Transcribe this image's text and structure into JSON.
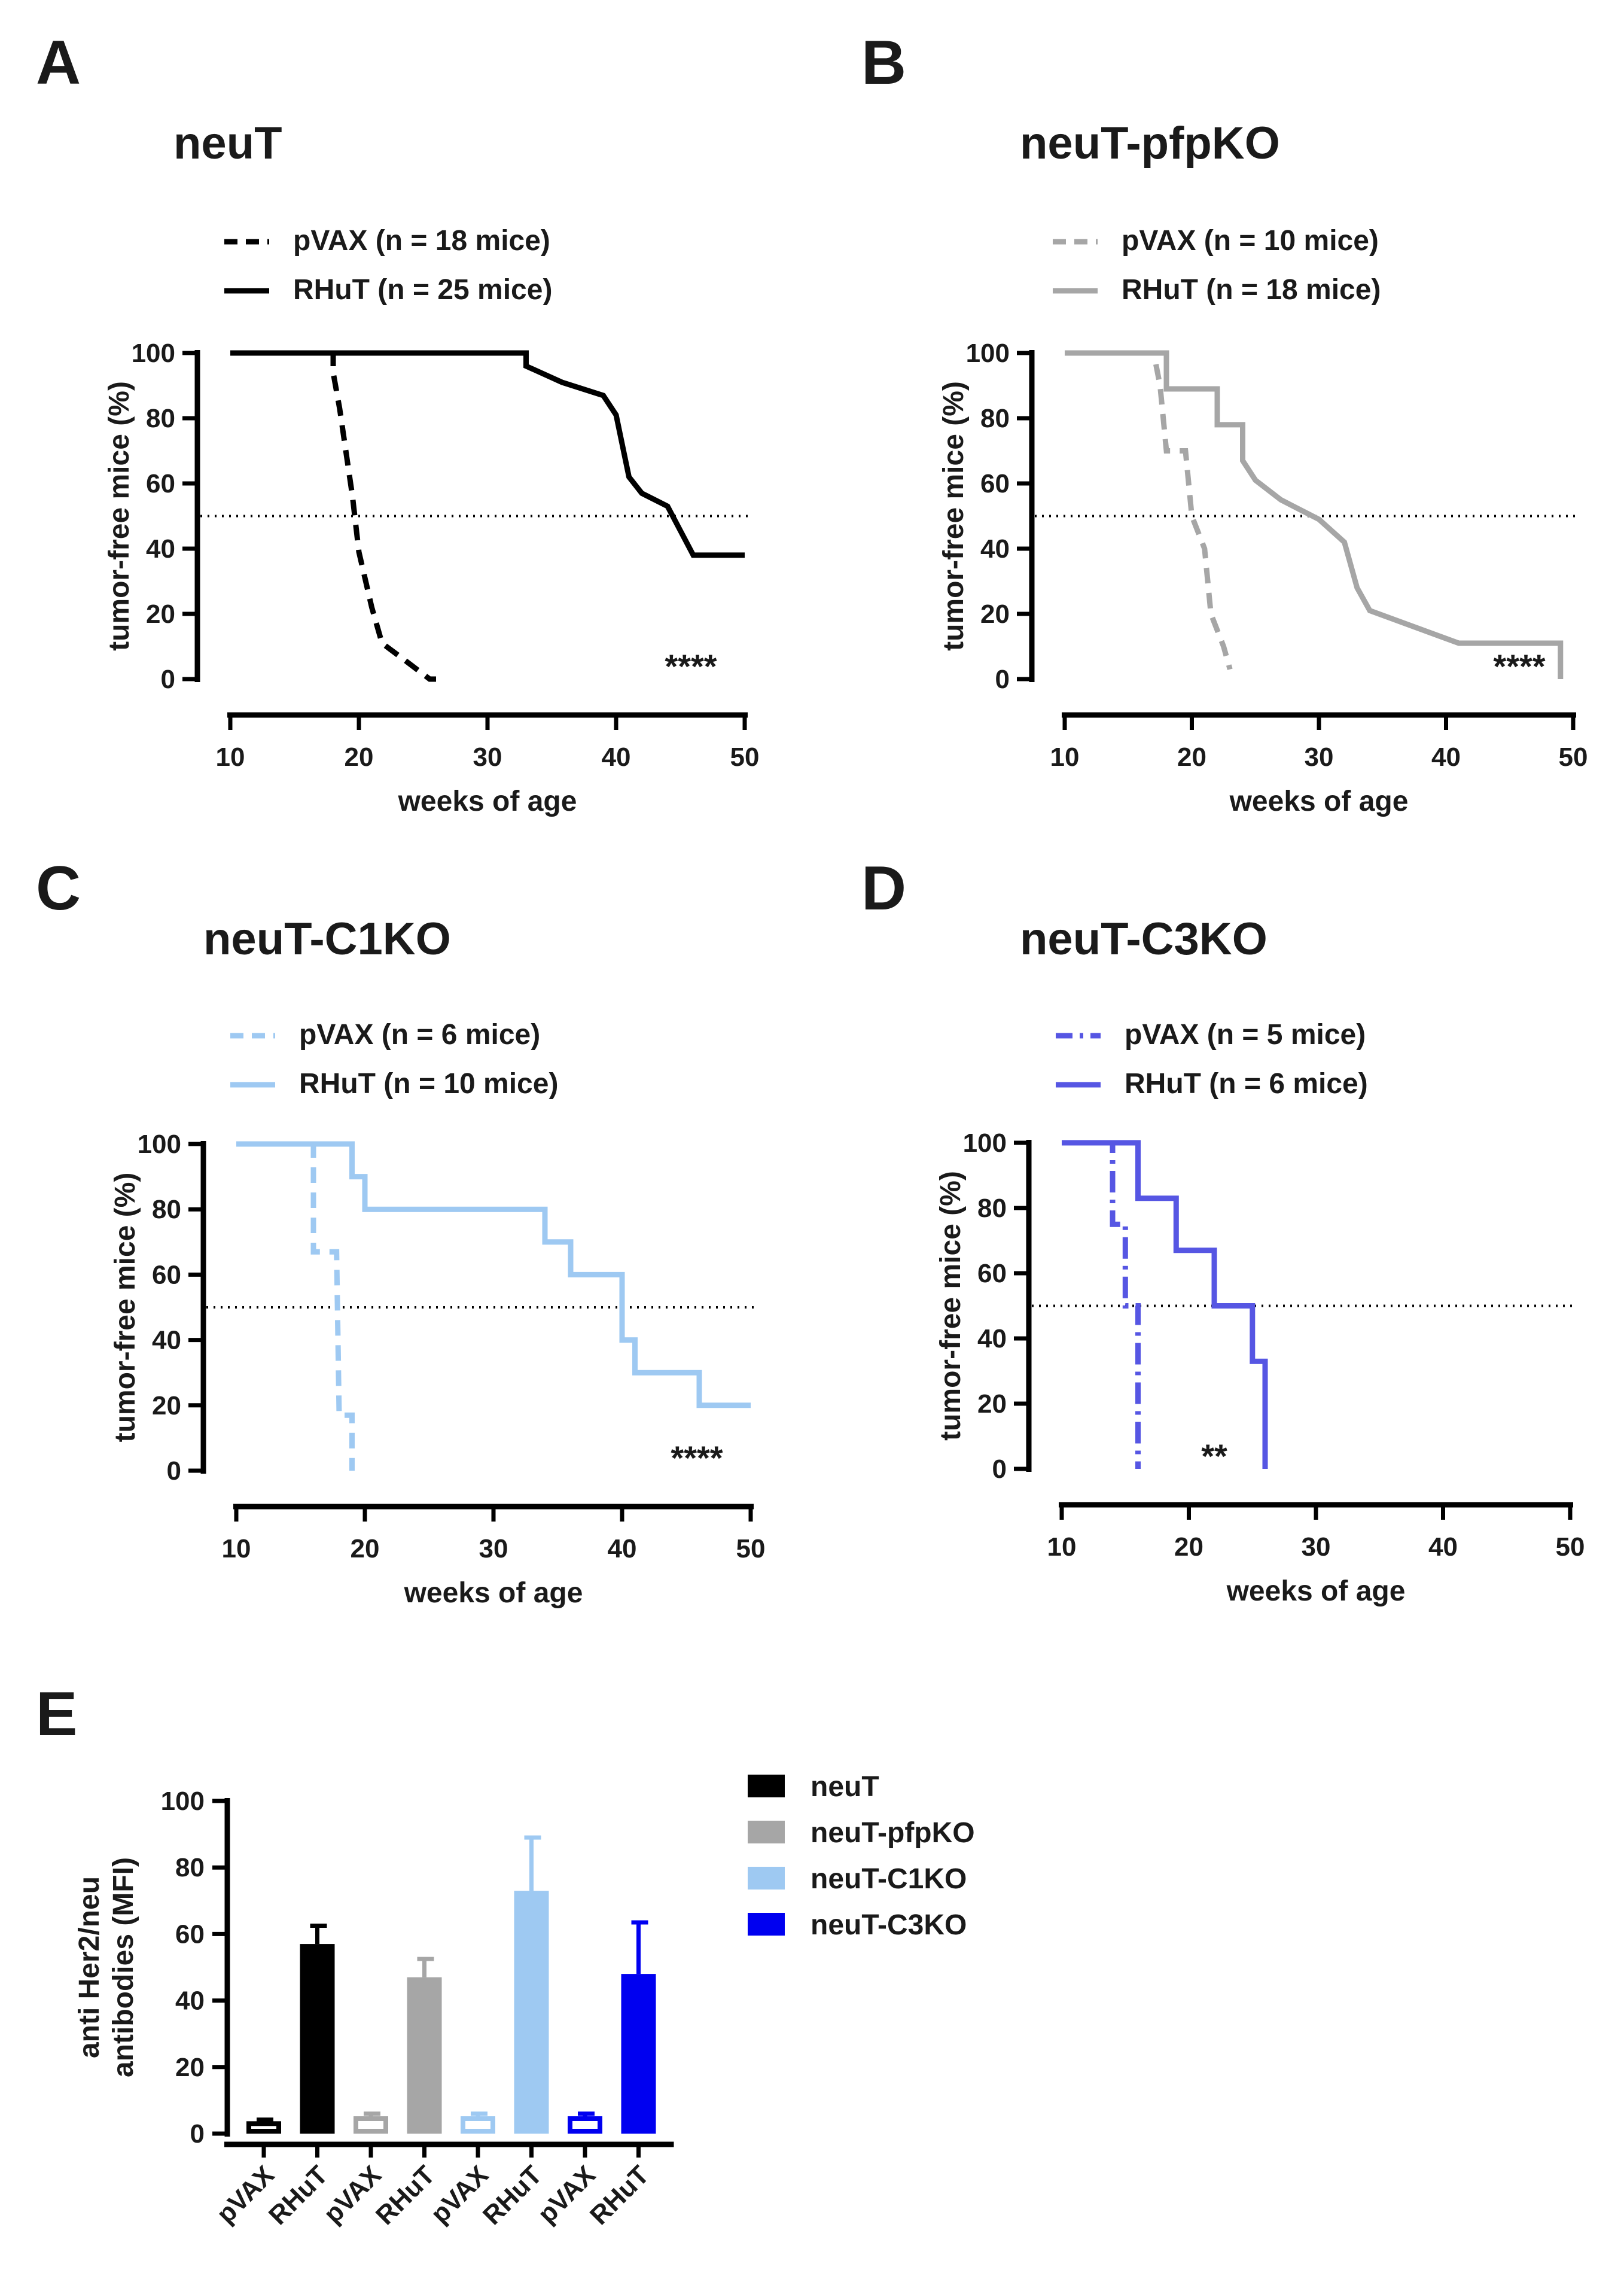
{
  "chart_data": [
    {
      "id": "A",
      "type": "line",
      "panel_label": "A",
      "title": "neuT",
      "xlabel": "weeks of age",
      "ylabel": "tumor-free mice (%)",
      "xlim": [
        10,
        50
      ],
      "ylim": [
        0,
        100
      ],
      "xticks": [
        10,
        20,
        30,
        40,
        50
      ],
      "yticks": [
        0,
        20,
        40,
        60,
        80,
        100
      ],
      "reference_line_y": 50,
      "significance": "****",
      "series": [
        {
          "name": "pVAX (n = 18 mice)",
          "style": "dashed",
          "color": "#000000",
          "points": [
            [
              10,
              100
            ],
            [
              18,
              100
            ],
            [
              18,
              94
            ],
            [
              18.5,
              83
            ],
            [
              19.5,
              56
            ],
            [
              20,
              39
            ],
            [
              21,
              22
            ],
            [
              21.8,
              11
            ],
            [
              23.5,
              6
            ],
            [
              25.5,
              0
            ],
            [
              26,
              0
            ]
          ]
        },
        {
          "name": "RHuT (n = 25 mice)",
          "style": "solid",
          "color": "#000000",
          "points": [
            [
              10,
              100
            ],
            [
              33,
              100
            ],
            [
              33,
              96
            ],
            [
              35.8,
              91
            ],
            [
              39,
              87
            ],
            [
              40,
              81
            ],
            [
              41,
              62
            ],
            [
              42,
              57
            ],
            [
              44,
              53
            ],
            [
              46,
              38
            ],
            [
              50,
              38
            ]
          ]
        }
      ]
    },
    {
      "id": "B",
      "type": "line",
      "panel_label": "B",
      "title": "neuT-pfpKO",
      "xlabel": "weeks of age",
      "ylabel": "tumor-free mice (%)",
      "xlim": [
        10,
        50
      ],
      "ylim": [
        0,
        100
      ],
      "xticks": [
        10,
        20,
        30,
        40,
        50
      ],
      "yticks": [
        0,
        20,
        40,
        60,
        80,
        100
      ],
      "reference_line_y": 50,
      "significance": "****",
      "series": [
        {
          "name": "pVAX (n = 10 mice)",
          "style": "dashed",
          "color": "#a6a6a6",
          "points": [
            [
              10,
              100
            ],
            [
              17,
              100
            ],
            [
              17.5,
              90
            ],
            [
              18,
              70
            ],
            [
              19.5,
              70
            ],
            [
              20,
              50
            ],
            [
              21,
              40
            ],
            [
              21.5,
              20
            ],
            [
              22.5,
              10
            ],
            [
              23,
              3
            ],
            [
              23,
              3
            ]
          ]
        },
        {
          "name": "RHuT (n = 18 mice)",
          "style": "solid",
          "color": "#a6a6a6",
          "points": [
            [
              10,
              100
            ],
            [
              18,
              100
            ],
            [
              18,
              89
            ],
            [
              22,
              89
            ],
            [
              22,
              78
            ],
            [
              24,
              78
            ],
            [
              24,
              67
            ],
            [
              25,
              61
            ],
            [
              27,
              55
            ],
            [
              30,
              49
            ],
            [
              32,
              42
            ],
            [
              33,
              28
            ],
            [
              34,
              21
            ],
            [
              41,
              11
            ],
            [
              49,
              11
            ],
            [
              49,
              0
            ]
          ]
        }
      ]
    },
    {
      "id": "C",
      "type": "line",
      "panel_label": "C",
      "title": "neuT-C1KO",
      "xlabel": "weeks of age",
      "ylabel": "tumor-free mice (%)",
      "xlim": [
        10,
        50
      ],
      "ylim": [
        0,
        100
      ],
      "xticks": [
        10,
        20,
        30,
        40,
        50
      ],
      "yticks": [
        0,
        20,
        40,
        60,
        80,
        100
      ],
      "reference_line_y": 50,
      "significance": "****",
      "series": [
        {
          "name": "pVAX (n = 6 mice)",
          "style": "dashed",
          "color": "#9ec9f2",
          "points": [
            [
              10,
              100
            ],
            [
              16,
              100
            ],
            [
              16,
              67
            ],
            [
              17.8,
              67
            ],
            [
              18,
              17
            ],
            [
              19,
              17
            ],
            [
              19,
              0
            ]
          ]
        },
        {
          "name": "RHuT (n = 10 mice)",
          "style": "solid",
          "color": "#9ec9f2",
          "points": [
            [
              10,
              100
            ],
            [
              19,
              100
            ],
            [
              19,
              90
            ],
            [
              20,
              90
            ],
            [
              20,
              80
            ],
            [
              34,
              80
            ],
            [
              34,
              70
            ],
            [
              36,
              70
            ],
            [
              36,
              60
            ],
            [
              40,
              60
            ],
            [
              40,
              40
            ],
            [
              41,
              40
            ],
            [
              41,
              30
            ],
            [
              46,
              30
            ],
            [
              46,
              20
            ],
            [
              50,
              20
            ]
          ]
        }
      ]
    },
    {
      "id": "D",
      "type": "line",
      "panel_label": "D",
      "title": "neuT-C3KO",
      "xlabel": "weeks of age",
      "ylabel": "tumor-free mice (%)",
      "xlim": [
        10,
        50
      ],
      "ylim": [
        0,
        100
      ],
      "xticks": [
        10,
        20,
        30,
        40,
        50
      ],
      "yticks": [
        0,
        20,
        40,
        60,
        80,
        100
      ],
      "reference_line_y": 50,
      "significance": "**",
      "series": [
        {
          "name": "pVAX (n = 5 mice)",
          "style": "dashdot",
          "color": "#5656e3",
          "points": [
            [
              10,
              100
            ],
            [
              14,
              100
            ],
            [
              14,
              75
            ],
            [
              15,
              75
            ],
            [
              15,
              50
            ],
            [
              16,
              50
            ],
            [
              16,
              0
            ]
          ]
        },
        {
          "name": "RHuT (n = 6 mice)",
          "style": "solid",
          "color": "#5656e3",
          "points": [
            [
              10,
              100
            ],
            [
              16,
              100
            ],
            [
              16,
              83
            ],
            [
              19,
              83
            ],
            [
              19,
              67
            ],
            [
              22,
              67
            ],
            [
              22,
              50
            ],
            [
              25,
              50
            ],
            [
              25,
              33
            ],
            [
              26,
              33
            ],
            [
              26,
              0
            ]
          ]
        }
      ]
    },
    {
      "id": "E",
      "type": "bar",
      "panel_label": "E",
      "ylabel": "anti Her2/neu antibodies (MFI)",
      "ylim": [
        0,
        100
      ],
      "yticks": [
        0,
        20,
        40,
        60,
        80,
        100
      ],
      "categories": [
        "pVAX",
        "RHuT",
        "pVAX",
        "RHuT",
        "pVAX",
        "RHuT",
        "pVAX",
        "RHuT"
      ],
      "values": [
        3,
        57,
        4.5,
        47,
        4.5,
        73,
        4.5,
        48
      ],
      "errors": [
        1.2,
        5.5,
        1.5,
        5.5,
        1.5,
        16,
        1.5,
        15.5
      ],
      "bar_groups": [
        0,
        0,
        1,
        1,
        2,
        2,
        3,
        3
      ],
      "filled": [
        false,
        true,
        false,
        true,
        false,
        true,
        false,
        true
      ],
      "legend": [
        {
          "name": "neuT",
          "color": "#000000"
        },
        {
          "name": "neuT-pfpKO",
          "color": "#a6a6a6"
        },
        {
          "name": "neuT-C1KO",
          "color": "#9ec9f2"
        },
        {
          "name": "neuT-C3KO",
          "color": "#0000f0"
        }
      ]
    }
  ]
}
